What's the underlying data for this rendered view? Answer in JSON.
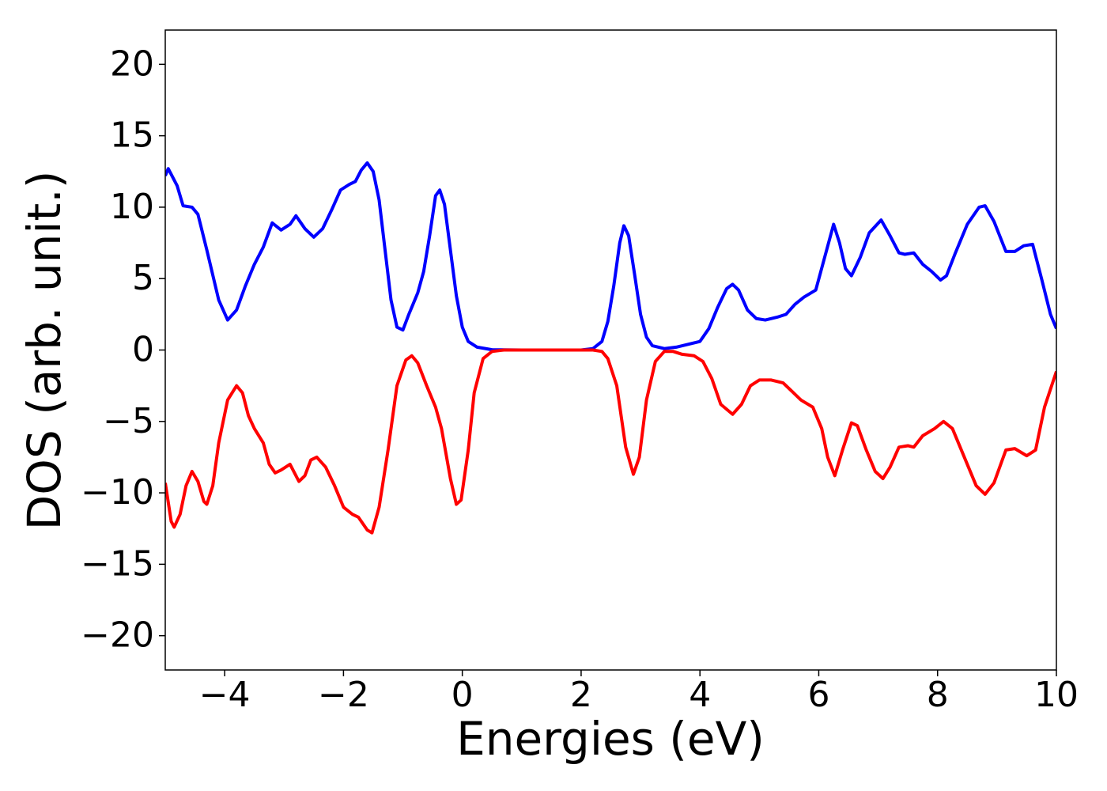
{
  "chart_data": {
    "type": "line",
    "x_label": "Energies (eV)",
    "y_label": "DOS (arb. unit.)",
    "xlim": [
      -5,
      10
    ],
    "ylim": [
      -22.4,
      22.4
    ],
    "xticks": [
      {
        "value": -4,
        "label": "−4"
      },
      {
        "value": -2,
        "label": "−2"
      },
      0,
      2,
      4,
      6,
      8,
      10
    ],
    "yticks": [
      {
        "value": -20,
        "label": "−20"
      },
      {
        "value": -15,
        "label": "−15"
      },
      {
        "value": -10,
        "label": "−10"
      },
      {
        "value": -5,
        "label": "−5"
      },
      0,
      5,
      10,
      15,
      20
    ],
    "grid": false,
    "series": [
      {
        "color": "#0000ff",
        "x": [
          -5,
          -4.95,
          -4.8,
          -4.7,
          -4.55,
          -4.45,
          -4.3,
          -4.1,
          -3.95,
          -3.8,
          -3.65,
          -3.5,
          -3.35,
          -3.2,
          -3.05,
          -2.9,
          -2.8,
          -2.65,
          -2.5,
          -2.35,
          -2.2,
          -2.05,
          -1.9,
          -1.8,
          -1.7,
          -1.6,
          -1.5,
          -1.4,
          -1.3,
          -1.2,
          -1.1,
          -1.0,
          -0.9,
          -0.75,
          -0.65,
          -0.55,
          -0.45,
          -0.38,
          -0.3,
          -0.2,
          -0.1,
          0,
          0.1,
          0.25,
          0.5,
          1.0,
          2.0,
          2.2,
          2.35,
          2.45,
          2.55,
          2.65,
          2.72,
          2.8,
          2.9,
          3.0,
          3.1,
          3.2,
          3.4,
          3.6,
          3.8,
          4.0,
          4.15,
          4.3,
          4.45,
          4.55,
          4.65,
          4.8,
          4.95,
          5.1,
          5.3,
          5.45,
          5.6,
          5.75,
          5.95,
          6.1,
          6.25,
          6.35,
          6.45,
          6.55,
          6.7,
          6.85,
          7.05,
          7.2,
          7.35,
          7.45,
          7.6,
          7.75,
          7.9,
          8.05,
          8.15,
          8.3,
          8.5,
          8.7,
          8.8,
          8.95,
          9.15,
          9.3,
          9.45,
          9.6,
          9.75,
          9.9,
          10
        ],
        "values": [
          12.2,
          12.7,
          11.5,
          10.1,
          10.0,
          9.5,
          7,
          3.5,
          2.1,
          2.8,
          4.5,
          6,
          7.2,
          8.9,
          8.4,
          8.8,
          9.4,
          8.5,
          7.9,
          8.5,
          9.8,
          11.2,
          11.6,
          11.8,
          12.6,
          13.1,
          12.5,
          10.5,
          7,
          3.5,
          1.6,
          1.4,
          2.5,
          4,
          5.5,
          8,
          10.8,
          11.2,
          10.2,
          7,
          3.8,
          1.6,
          0.6,
          0.2,
          0.02,
          0,
          0,
          0.1,
          0.6,
          2,
          4.5,
          7.5,
          8.7,
          8,
          5.3,
          2.5,
          0.9,
          0.3,
          0.1,
          0.2,
          0.4,
          0.6,
          1.5,
          3,
          4.3,
          4.6,
          4.2,
          2.8,
          2.2,
          2.1,
          2.3,
          2.5,
          3.2,
          3.7,
          4.2,
          6.5,
          8.8,
          7.5,
          5.7,
          5.2,
          6.5,
          8.2,
          9.1,
          8,
          6.8,
          6.7,
          6.8,
          6,
          5.5,
          4.9,
          5.2,
          6.8,
          8.8,
          10,
          10.1,
          9,
          6.9,
          6.9,
          7.3,
          7.4,
          5,
          2.5,
          1.5
        ]
      },
      {
        "color": "#ff0000",
        "x": [
          -5,
          -4.9,
          -4.85,
          -4.75,
          -4.65,
          -4.55,
          -4.45,
          -4.35,
          -4.3,
          -4.2,
          -4.1,
          -3.95,
          -3.8,
          -3.7,
          -3.6,
          -3.5,
          -3.35,
          -3.25,
          -3.15,
          -3.05,
          -2.9,
          -2.75,
          -2.65,
          -2.55,
          -2.45,
          -2.3,
          -2.15,
          -2.0,
          -1.85,
          -1.75,
          -1.6,
          -1.52,
          -1.4,
          -1.25,
          -1.1,
          -0.95,
          -0.85,
          -0.75,
          -0.6,
          -0.45,
          -0.35,
          -0.2,
          -0.1,
          -0.02,
          0.1,
          0.2,
          0.35,
          0.5,
          0.7,
          2.2,
          2.35,
          2.45,
          2.6,
          2.75,
          2.88,
          2.98,
          3.1,
          3.25,
          3.4,
          3.55,
          3.7,
          3.9,
          4.05,
          4.2,
          4.35,
          4.55,
          4.7,
          4.85,
          5.0,
          5.2,
          5.4,
          5.55,
          5.7,
          5.9,
          6.05,
          6.15,
          6.27,
          6.4,
          6.55,
          6.65,
          6.8,
          6.95,
          7.08,
          7.2,
          7.35,
          7.5,
          7.6,
          7.75,
          7.95,
          8.1,
          8.25,
          8.45,
          8.65,
          8.8,
          8.95,
          9.15,
          9.3,
          9.5,
          9.65,
          9.8,
          10
        ],
        "values": [
          -9.3,
          -12,
          -12.4,
          -11.5,
          -9.5,
          -8.5,
          -9.2,
          -10.6,
          -10.8,
          -9.5,
          -6.5,
          -3.5,
          -2.5,
          -3,
          -4.6,
          -5.5,
          -6.5,
          -8,
          -8.6,
          -8.4,
          -8,
          -9.2,
          -8.8,
          -7.7,
          -7.5,
          -8.2,
          -9.5,
          -11,
          -11.5,
          -11.7,
          -12.6,
          -12.8,
          -11,
          -7,
          -2.5,
          -0.7,
          -0.4,
          -0.9,
          -2.5,
          -4,
          -5.5,
          -9,
          -10.8,
          -10.5,
          -7,
          -3,
          -0.6,
          -0.1,
          0,
          0,
          -0.1,
          -0.6,
          -2.5,
          -6.8,
          -8.7,
          -7.5,
          -3.5,
          -0.8,
          -0.1,
          -0.1,
          -0.3,
          -0.4,
          -0.8,
          -2,
          -3.8,
          -4.5,
          -3.8,
          -2.5,
          -2.1,
          -2.1,
          -2.3,
          -2.9,
          -3.5,
          -4,
          -5.5,
          -7.5,
          -8.8,
          -7,
          -5.1,
          -5.3,
          -7,
          -8.5,
          -9,
          -8.2,
          -6.8,
          -6.7,
          -6.8,
          -6,
          -5.5,
          -5,
          -5.5,
          -7.5,
          -9.5,
          -10.1,
          -9.3,
          -7,
          -6.9,
          -7.4,
          -7,
          -4,
          -1.5
        ]
      }
    ]
  }
}
